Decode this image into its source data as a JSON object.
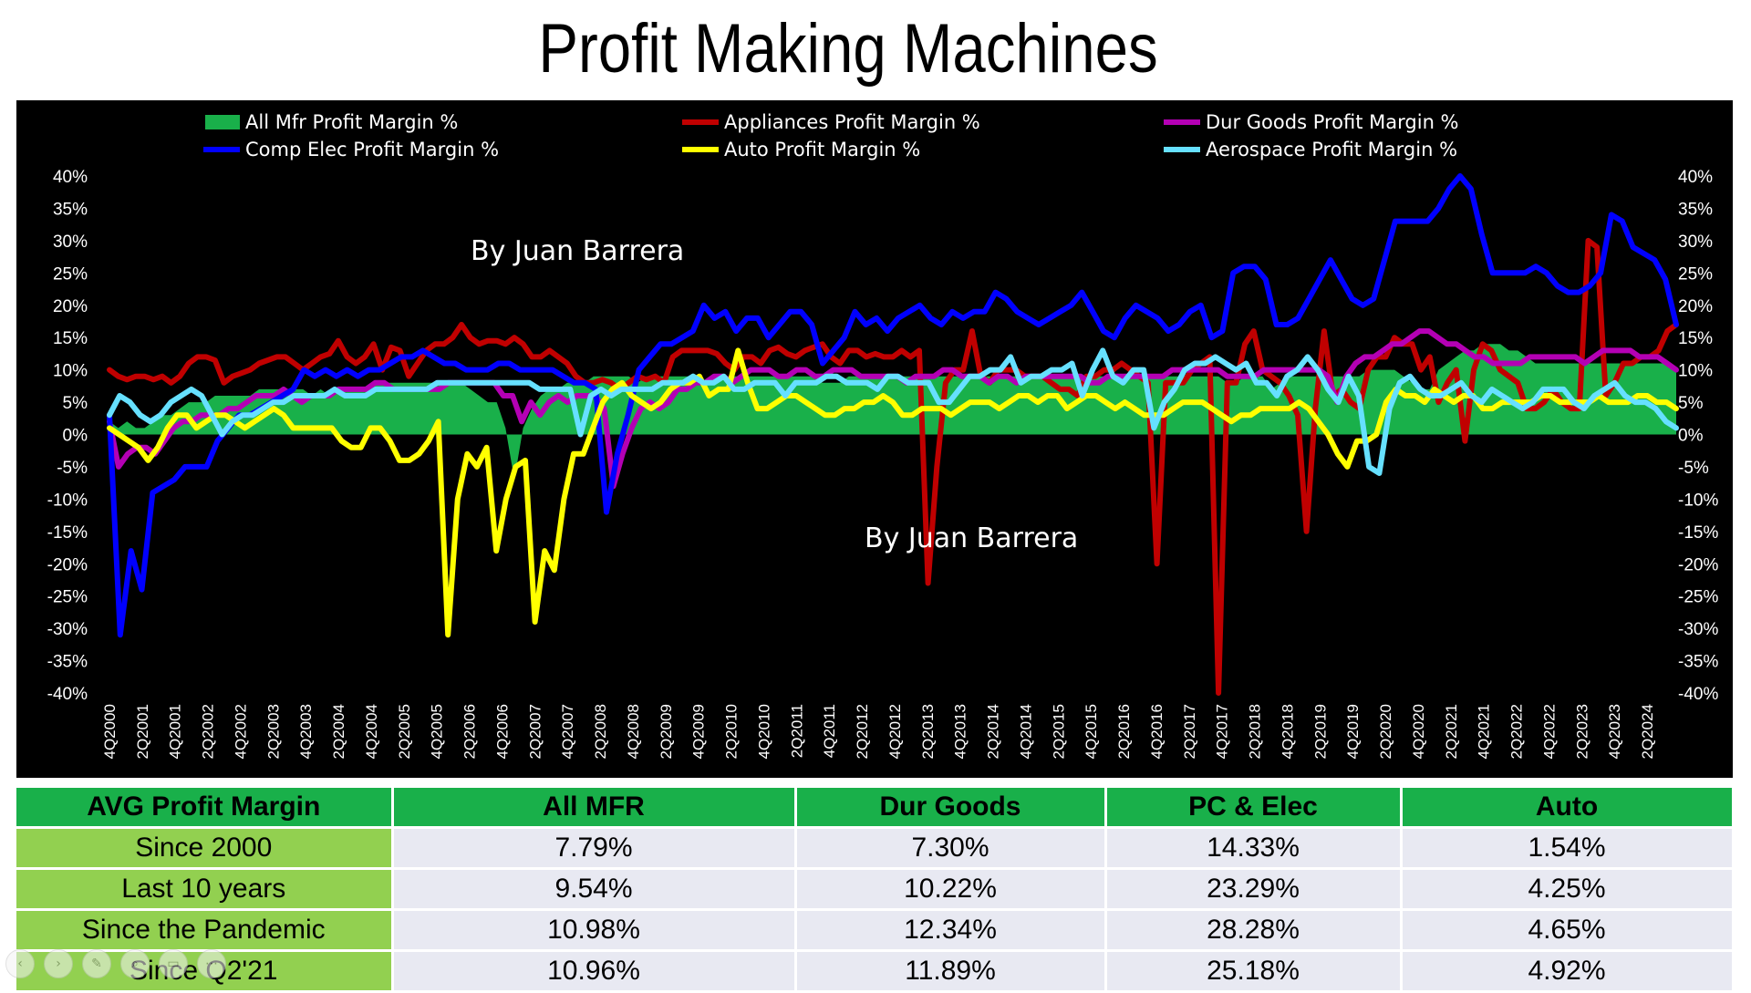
{
  "title": "Profit Making Machines",
  "watermarks": [
    "By Juan Barrera",
    "By Juan Barrera"
  ],
  "chart_data": {
    "type": "line",
    "y_ticks": [
      "40%",
      "35%",
      "30%",
      "25%",
      "20%",
      "15%",
      "10%",
      "5%",
      "0%",
      "-5%",
      "-10%",
      "-15%",
      "-20%",
      "-25%",
      "-30%",
      "-35%",
      "-40%"
    ],
    "ylim": [
      -40,
      40
    ],
    "y_axis": "left and right, identical scales",
    "grid": false,
    "legend": "top, two rows of three",
    "x_ticks": [
      "4Q2000",
      "2Q2001",
      "4Q2001",
      "2Q2002",
      "4Q2002",
      "2Q2003",
      "4Q2003",
      "2Q2004",
      "4Q2004",
      "2Q2005",
      "4Q2005",
      "2Q2006",
      "4Q2006",
      "2Q2007",
      "4Q2007",
      "2Q2008",
      "4Q2008",
      "2Q2009",
      "4Q2009",
      "2Q2010",
      "4Q2010",
      "2Q2011",
      "4Q2011",
      "2Q2012",
      "4Q2012",
      "2Q2013",
      "4Q2013",
      "2Q2014",
      "4Q2014",
      "2Q2015",
      "4Q2015",
      "2Q2016",
      "4Q2016",
      "2Q2017",
      "4Q2017",
      "2Q2018",
      "4Q2018",
      "2Q2019",
      "4Q2019",
      "2Q2020",
      "4Q2020",
      "2Q2021",
      "4Q2021",
      "2Q2022",
      "4Q2022",
      "2Q2023",
      "4Q2023",
      "2Q2024"
    ],
    "series": [
      {
        "name": "All Mfr Profit Margin %",
        "type": "area",
        "color": "#19b04a",
        "values": [
          2,
          1,
          2,
          1,
          1,
          2,
          3,
          3,
          4,
          5,
          5,
          5,
          6,
          6,
          6,
          6,
          6,
          7,
          7,
          7,
          7,
          7,
          7,
          6,
          7,
          6,
          7,
          7,
          7,
          7,
          8,
          8,
          8,
          8,
          8,
          8,
          8,
          8,
          8,
          8,
          8,
          7,
          6,
          5,
          5,
          1,
          -7,
          1,
          4,
          6,
          7,
          7,
          8,
          8,
          8,
          9,
          9,
          9,
          9,
          9,
          8,
          9,
          9,
          9,
          9,
          9,
          9,
          9,
          8,
          9,
          9,
          9,
          9,
          9,
          9,
          9,
          9,
          9,
          9,
          9,
          9,
          8,
          8,
          8,
          9,
          9,
          9,
          9,
          9,
          9,
          9,
          9,
          9,
          9,
          9,
          9,
          9,
          9,
          9,
          9,
          9,
          9,
          9,
          9,
          9,
          9,
          9,
          9,
          9,
          9,
          9,
          9,
          9,
          9,
          9,
          9,
          9,
          9,
          9,
          9,
          9,
          9,
          9,
          9,
          9,
          9,
          9,
          8,
          8,
          9,
          9,
          9,
          7,
          8,
          9,
          9,
          9,
          9,
          9,
          9,
          9,
          9,
          9,
          10,
          10,
          10,
          10,
          9,
          8,
          7,
          7,
          10,
          11,
          12,
          13,
          13,
          14,
          14,
          14,
          13,
          13,
          12,
          11,
          11,
          11,
          11,
          11,
          11,
          11,
          11,
          11,
          11,
          11,
          11,
          11,
          11,
          11,
          11,
          10
        ]
      },
      {
        "name": "Appliances Profit Margin %",
        "color": "#c00000",
        "values": [
          10,
          9,
          8.5,
          9,
          9,
          8.5,
          9,
          8,
          9,
          11,
          12,
          12,
          11.5,
          8,
          9,
          9.5,
          10,
          11,
          11.5,
          12,
          12,
          11,
          10,
          11,
          12,
          12.5,
          14.5,
          12,
          11,
          12,
          14,
          10,
          13.5,
          13,
          9,
          11,
          13,
          14,
          14,
          15,
          17,
          15,
          14,
          14.5,
          14.5,
          14,
          15,
          14,
          12,
          12,
          13,
          12,
          11,
          9,
          8,
          8,
          8.5,
          8,
          7,
          8,
          9,
          8.5,
          9,
          8,
          12,
          13,
          13,
          13,
          13,
          12.5,
          11,
          10,
          12,
          12,
          11,
          13,
          13.5,
          12.5,
          12,
          13,
          13.5,
          14,
          12,
          11,
          13,
          13,
          12,
          12.5,
          12,
          12,
          13,
          12,
          13,
          -23,
          -5,
          8,
          10,
          10,
          16,
          9,
          8,
          10,
          10,
          10,
          9,
          9,
          9,
          8,
          7,
          7,
          6,
          9,
          9,
          10,
          10,
          11,
          10,
          9,
          8,
          -20,
          8,
          8,
          8,
          10,
          11,
          12,
          -40,
          8,
          8,
          14,
          16,
          10,
          9,
          8,
          6,
          3,
          -15,
          4,
          16,
          6,
          7,
          5,
          4,
          10,
          12,
          12,
          15,
          14,
          14,
          10,
          12,
          5,
          8,
          10,
          -1,
          10,
          14,
          13,
          10,
          9,
          8,
          4,
          4,
          5,
          7,
          5,
          4,
          4,
          30,
          29,
          6,
          8,
          11,
          11,
          12,
          12,
          13,
          16,
          17
        ]
      },
      {
        "name": "Dur Goods Profit Margin %",
        "color": "#b400b4",
        "values": [
          2,
          -5,
          -3,
          -2,
          -2,
          -3,
          -1,
          1,
          2,
          2,
          3,
          3,
          3,
          4,
          4,
          5,
          6,
          6,
          6,
          7,
          6,
          5,
          6,
          6,
          6,
          7,
          7,
          7,
          7,
          8,
          8,
          7,
          7,
          7,
          7,
          7,
          7,
          8,
          8,
          8,
          8,
          8,
          8,
          6,
          6,
          2,
          5,
          3,
          5,
          6,
          5,
          6,
          6,
          6,
          4,
          -8,
          -3,
          1,
          4,
          5,
          4,
          5,
          7,
          7,
          8,
          8,
          9,
          9,
          8,
          9,
          10,
          10,
          10,
          9,
          9,
          10,
          10,
          9,
          9,
          10,
          10,
          10,
          9,
          9,
          9,
          9,
          9,
          8,
          9,
          9,
          9,
          10,
          10,
          9,
          9,
          9,
          8,
          9,
          9,
          8,
          9,
          9,
          9,
          9,
          9,
          9,
          9,
          8,
          8,
          9,
          9,
          9,
          9,
          9,
          9,
          9,
          10,
          10,
          10,
          10,
          10,
          10,
          9,
          9,
          9,
          9,
          10,
          10,
          10,
          10,
          10,
          10,
          10,
          9,
          5,
          9,
          11,
          12,
          12,
          13,
          14,
          14,
          15,
          16,
          16,
          15,
          14,
          14,
          13,
          12,
          12,
          11,
          11,
          11,
          11,
          12,
          12,
          12,
          12,
          12,
          12,
          11,
          12,
          13,
          13,
          13,
          13,
          12,
          12,
          12,
          11,
          10
        ]
      },
      {
        "name": "Comp Elec Profit Margin %",
        "color": "#0000ff",
        "values": [
          3,
          -31,
          -18,
          -24,
          -9,
          -8,
          -7,
          -5,
          -5,
          -5,
          -1,
          1,
          3,
          3,
          4,
          5,
          6,
          7,
          10,
          9,
          10,
          9,
          10,
          9,
          10,
          10,
          11,
          12,
          12,
          13,
          12,
          11,
          11,
          10,
          10,
          10,
          11,
          11,
          10,
          10,
          10,
          10,
          9,
          8,
          8,
          7,
          -12,
          -3,
          3,
          10,
          12,
          14,
          14,
          15,
          16,
          20,
          18,
          19,
          16,
          18,
          18,
          15,
          17,
          19,
          19,
          17,
          11,
          13,
          15,
          19,
          17,
          18,
          16,
          18,
          19,
          20,
          18,
          17,
          19,
          18,
          19,
          19,
          22,
          21,
          19,
          18,
          17,
          18,
          19,
          20,
          22,
          19,
          16,
          15,
          18,
          20,
          19,
          18,
          16,
          17,
          19,
          20,
          15,
          16,
          25,
          26,
          26,
          24,
          17,
          17,
          18,
          21,
          24,
          27,
          24,
          21,
          20,
          21,
          27,
          33,
          33,
          33,
          33,
          35,
          38,
          40,
          38,
          31,
          25,
          25,
          25,
          25,
          26,
          25,
          23,
          22,
          22,
          23,
          25,
          34,
          33,
          29,
          28,
          27,
          24,
          17
        ]
      },
      {
        "name": "Auto Profit Margin %",
        "color": "#ffff00",
        "values": [
          1,
          0,
          -1,
          -2,
          -4,
          -2,
          1,
          3,
          3,
          1,
          2,
          3,
          3,
          2,
          1,
          2,
          3,
          4,
          3,
          1,
          1,
          1,
          1,
          1,
          -1,
          -2,
          -2,
          1,
          1,
          -1,
          -4,
          -4,
          -3,
          -1,
          2,
          -31,
          -10,
          -3,
          -5,
          -2,
          -18,
          -10,
          -5,
          -4,
          -29,
          -18,
          -21,
          -10,
          -3,
          -3,
          1,
          5,
          7,
          8,
          6,
          5,
          4,
          5,
          7,
          8,
          8,
          9,
          6,
          7,
          7,
          13,
          8,
          4,
          4,
          5,
          6,
          6,
          5,
          4,
          3,
          3,
          4,
          4,
          5,
          5,
          6,
          5,
          3,
          3,
          4,
          4,
          4,
          3,
          4,
          5,
          5,
          5,
          4,
          5,
          6,
          6,
          5,
          6,
          6,
          4,
          5,
          6,
          6,
          5,
          4,
          5,
          4,
          3,
          3,
          3,
          4,
          5,
          5,
          5,
          4,
          3,
          2,
          3,
          3,
          4,
          4,
          4,
          4,
          5,
          4,
          2,
          0,
          -3,
          -5,
          -1,
          -1,
          0,
          5,
          7,
          6,
          6,
          5,
          7,
          6,
          5,
          6,
          6,
          4,
          4,
          5,
          5,
          5,
          5,
          6,
          6,
          5,
          5,
          5,
          5,
          6,
          5,
          5,
          5,
          6,
          6,
          5,
          5,
          4
        ]
      },
      {
        "name": "Aerospace Profit Margin %",
        "color": "#66e0ff",
        "values": [
          3,
          6,
          5,
          3,
          2,
          3,
          5,
          6,
          7,
          6,
          3,
          0,
          2,
          3,
          3,
          4,
          5,
          5,
          6,
          6,
          6,
          6,
          7,
          6,
          6,
          6,
          7,
          7,
          7,
          7,
          7,
          7,
          8,
          8,
          8,
          8,
          8,
          8,
          8,
          8,
          8,
          8,
          7,
          7,
          7,
          7,
          0,
          6,
          7,
          6,
          7,
          7,
          7,
          7,
          8,
          8,
          8,
          9,
          8,
          8,
          9,
          7,
          7,
          8,
          8,
          8,
          6,
          8,
          8,
          8,
          9,
          9,
          8,
          8,
          8,
          7,
          9,
          9,
          8,
          8,
          8,
          5,
          5,
          7,
          9,
          9,
          10,
          10,
          12,
          8,
          9,
          9,
          10,
          10,
          11,
          6,
          10,
          13,
          9,
          8,
          10,
          10,
          1,
          5,
          7,
          10,
          11,
          11,
          12,
          11,
          10,
          11,
          8,
          8,
          6,
          9,
          10,
          12,
          10,
          7,
          5,
          9,
          6,
          -5,
          -6,
          4,
          8,
          9,
          7,
          6,
          6,
          7,
          8,
          6,
          5,
          7,
          6,
          5,
          4,
          5,
          7,
          7,
          7,
          5,
          4,
          6,
          7,
          8,
          6,
          5,
          5,
          4,
          2,
          1
        ]
      }
    ]
  },
  "table": {
    "headers": [
      "AVG Profit Margin",
      "All MFR",
      "Dur Goods",
      "PC & Elec",
      "Auto"
    ],
    "rows": [
      {
        "label": "Since 2000",
        "values": [
          "7.79%",
          "7.30%",
          "14.33%",
          "1.54%"
        ]
      },
      {
        "label": "Last 10 years",
        "values": [
          "9.54%",
          "10.22%",
          "23.29%",
          "4.25%"
        ]
      },
      {
        "label": "Since the Pandemic",
        "values": [
          "10.98%",
          "12.34%",
          "28.28%",
          "4.65%"
        ]
      },
      {
        "label": "Since Q2'21",
        "values": [
          "10.96%",
          "11.89%",
          "25.18%",
          "4.92%"
        ]
      }
    ]
  },
  "controls": {
    "icons": [
      "prev-icon",
      "next-icon",
      "pen-icon",
      "zoom-icon",
      "camera-icon",
      "more-icon"
    ],
    "glyphs": [
      "‹",
      "›",
      "✎",
      "⌕",
      "▭",
      "⋯"
    ]
  }
}
